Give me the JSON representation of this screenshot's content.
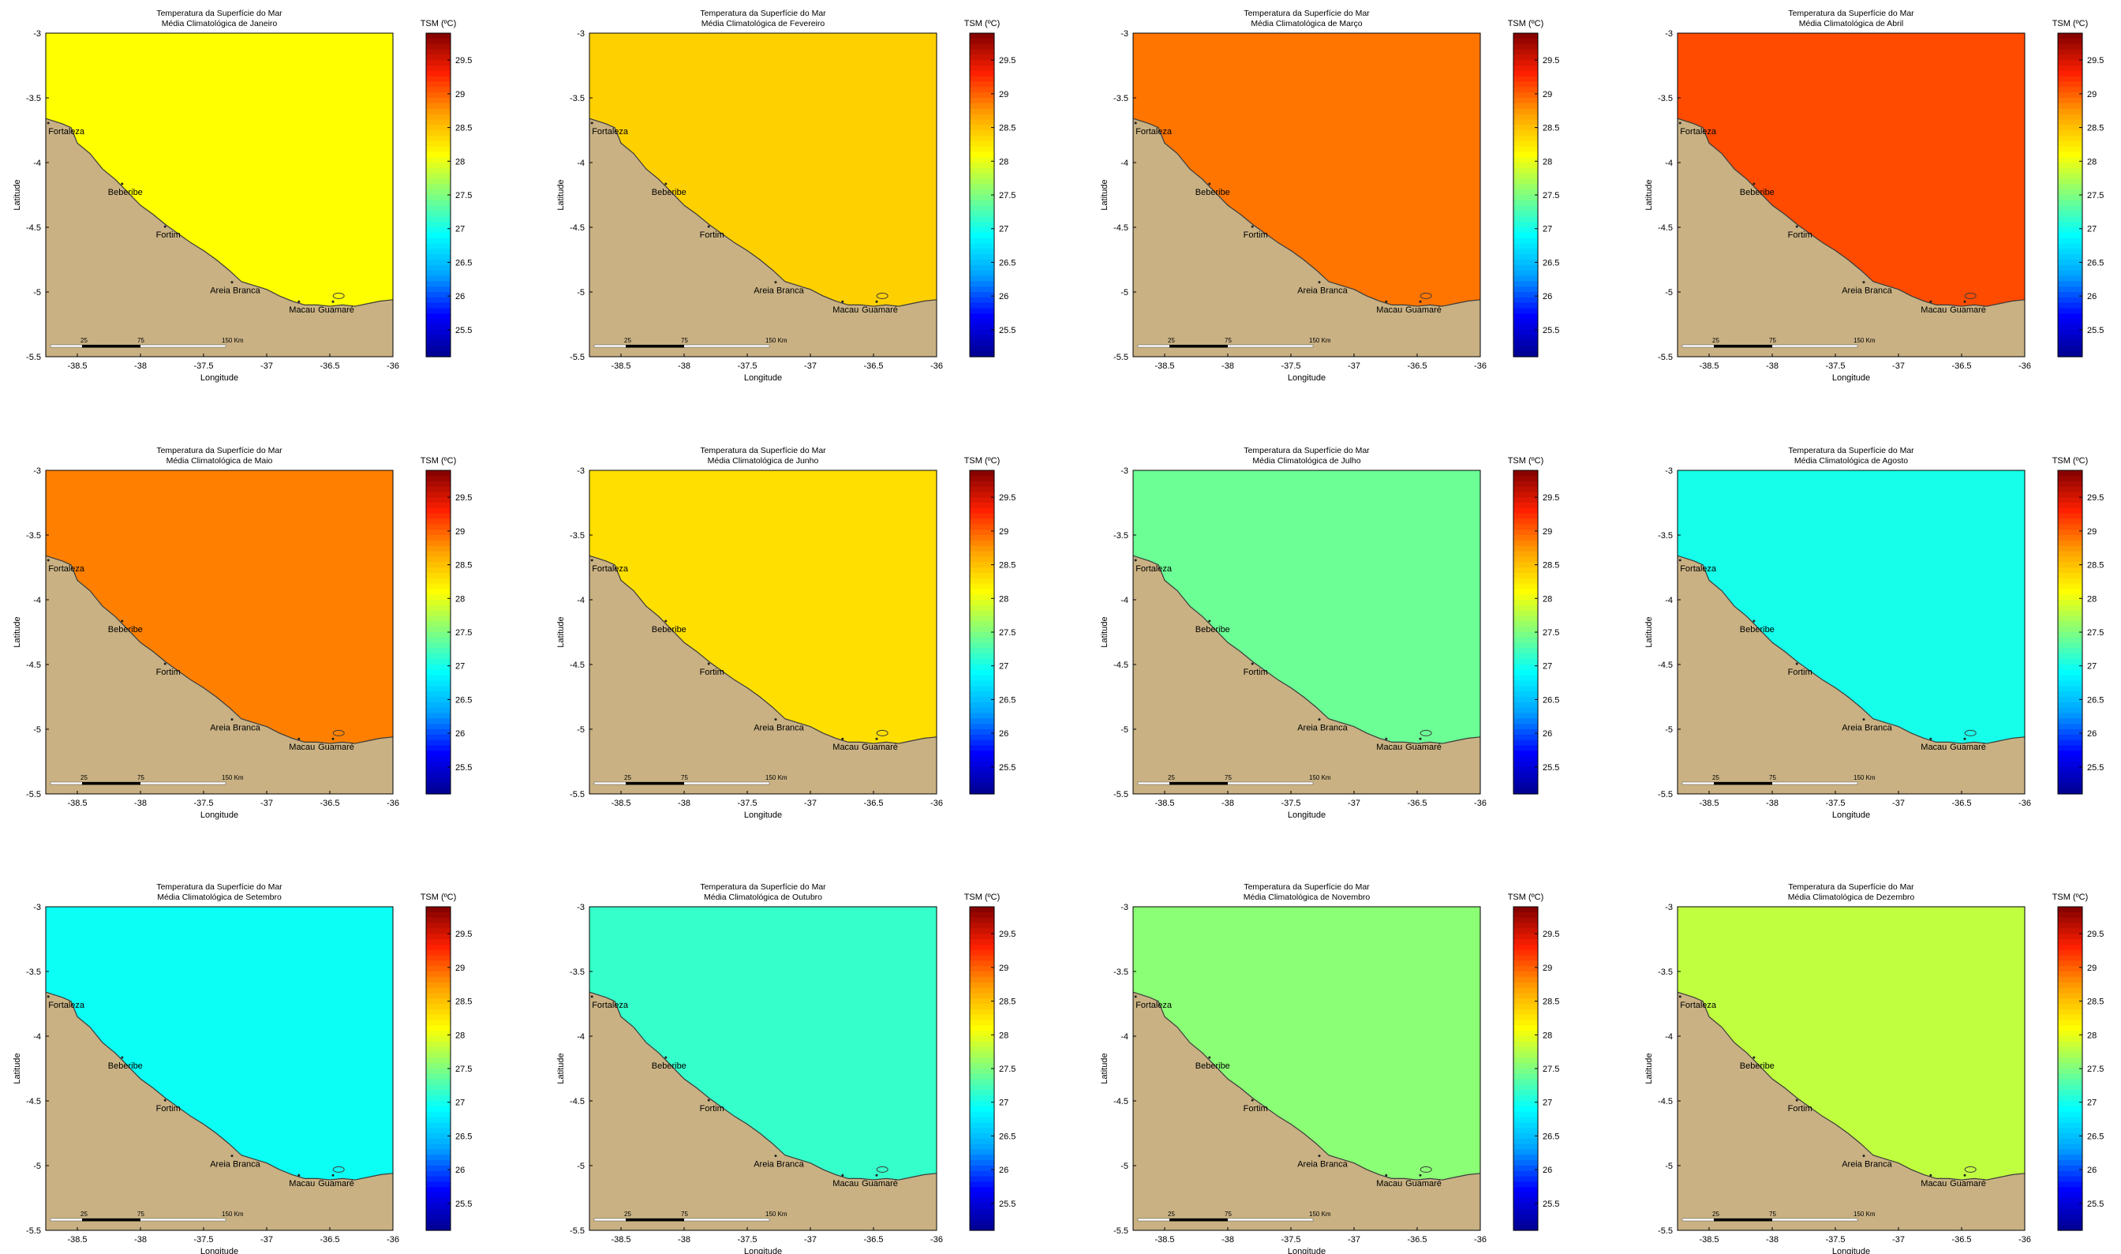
{
  "figure": {
    "title_line1": "Temperatura da Superfície do Mar",
    "xlabel": "Longitude",
    "ylabel": "Latitude",
    "colorbar_title": "TSM (ºC)",
    "colorbar_ticks": [
      "29.5",
      "29",
      "28.5",
      "28",
      "27.5",
      "27",
      "26.5",
      "26",
      "25.5"
    ],
    "x_ticks": [
      "-38.5",
      "-38",
      "-37.5",
      "-37",
      "-36.5",
      "-36"
    ],
    "y_ticks": [
      "-3",
      "-3.5",
      "-4",
      "-4.5",
      "-5",
      "-5.5"
    ],
    "scale_labels": [
      "25",
      "75",
      "150 Km"
    ],
    "places": [
      "Fortaleza",
      "Beberibe",
      "Fortim",
      "Areia Branca",
      "Macau",
      "Guamaré"
    ],
    "colors": {
      "land": "#c9b183",
      "coast": "#3a3a3a",
      "colormap": [
        "#00008f",
        "#0000ff",
        "#00a0ff",
        "#00ffff",
        "#80ff80",
        "#ffff00",
        "#ffa000",
        "#ff2000",
        "#800000"
      ]
    }
  },
  "chart_data": [
    {
      "type": "heatmap",
      "title": "Média Climatológica de Janeiro",
      "mean_sst": 28.1,
      "clim": [
        25.1,
        29.9
      ],
      "xlim": [
        -38.75,
        -36
      ],
      "ylim": [
        -5.5,
        -3
      ]
    },
    {
      "type": "heatmap",
      "title": "Média Climatológica de Fevereiro",
      "mean_sst": 28.4,
      "clim": [
        25.1,
        29.9
      ],
      "xlim": [
        -38.75,
        -36
      ],
      "ylim": [
        -5.5,
        -3
      ]
    },
    {
      "type": "heatmap",
      "title": "Média Climatológica de Março",
      "mean_sst": 28.9,
      "clim": [
        25.1,
        29.9
      ],
      "xlim": [
        -38.75,
        -36
      ],
      "ylim": [
        -5.5,
        -3
      ]
    },
    {
      "type": "heatmap",
      "title": "Média Climatológica de Abril",
      "mean_sst": 29.1,
      "clim": [
        25.1,
        29.9
      ],
      "xlim": [
        -38.75,
        -36
      ],
      "ylim": [
        -5.5,
        -3
      ]
    },
    {
      "type": "heatmap",
      "title": "Média Climatológica de Maio",
      "mean_sst": 28.85,
      "clim": [
        25.1,
        29.9
      ],
      "xlim": [
        -38.75,
        -36
      ],
      "ylim": [
        -5.5,
        -3
      ]
    },
    {
      "type": "heatmap",
      "title": "Média Climatológica de Junho",
      "mean_sst": 28.3,
      "clim": [
        25.1,
        29.9
      ],
      "xlim": [
        -38.75,
        -36
      ],
      "ylim": [
        -5.5,
        -3
      ]
    },
    {
      "type": "heatmap",
      "title": "Média Climatológica de Julho",
      "mean_sst": 27.4,
      "clim": [
        25.1,
        29.9
      ],
      "xlim": [
        -38.75,
        -36
      ],
      "ylim": [
        -5.5,
        -3
      ]
    },
    {
      "type": "heatmap",
      "title": "Média Climatológica de Agosto",
      "mean_sst": 27.0,
      "clim": [
        25.1,
        29.9
      ],
      "xlim": [
        -38.75,
        -36
      ],
      "ylim": [
        -5.5,
        -3
      ]
    },
    {
      "type": "heatmap",
      "title": "Média Climatológica de Setembro",
      "mean_sst": 26.95,
      "clim": [
        25.1,
        29.9
      ],
      "xlim": [
        -38.75,
        -36
      ],
      "ylim": [
        -5.5,
        -3
      ]
    },
    {
      "type": "heatmap",
      "title": "Média Climatológica de Outubro",
      "mean_sst": 27.15,
      "clim": [
        25.1,
        29.9
      ],
      "xlim": [
        -38.75,
        -36
      ],
      "ylim": [
        -5.5,
        -3
      ]
    },
    {
      "type": "heatmap",
      "title": "Média Climatológica de Novembro",
      "mean_sst": 27.55,
      "clim": [
        25.1,
        29.9
      ],
      "xlim": [
        -38.75,
        -36
      ],
      "ylim": [
        -5.5,
        -3
      ]
    },
    {
      "type": "heatmap",
      "title": "Média Climatológica de Dezembro",
      "mean_sst": 27.8,
      "clim": [
        25.1,
        29.9
      ],
      "xlim": [
        -38.75,
        -36
      ],
      "ylim": [
        -5.5,
        -3
      ]
    }
  ]
}
